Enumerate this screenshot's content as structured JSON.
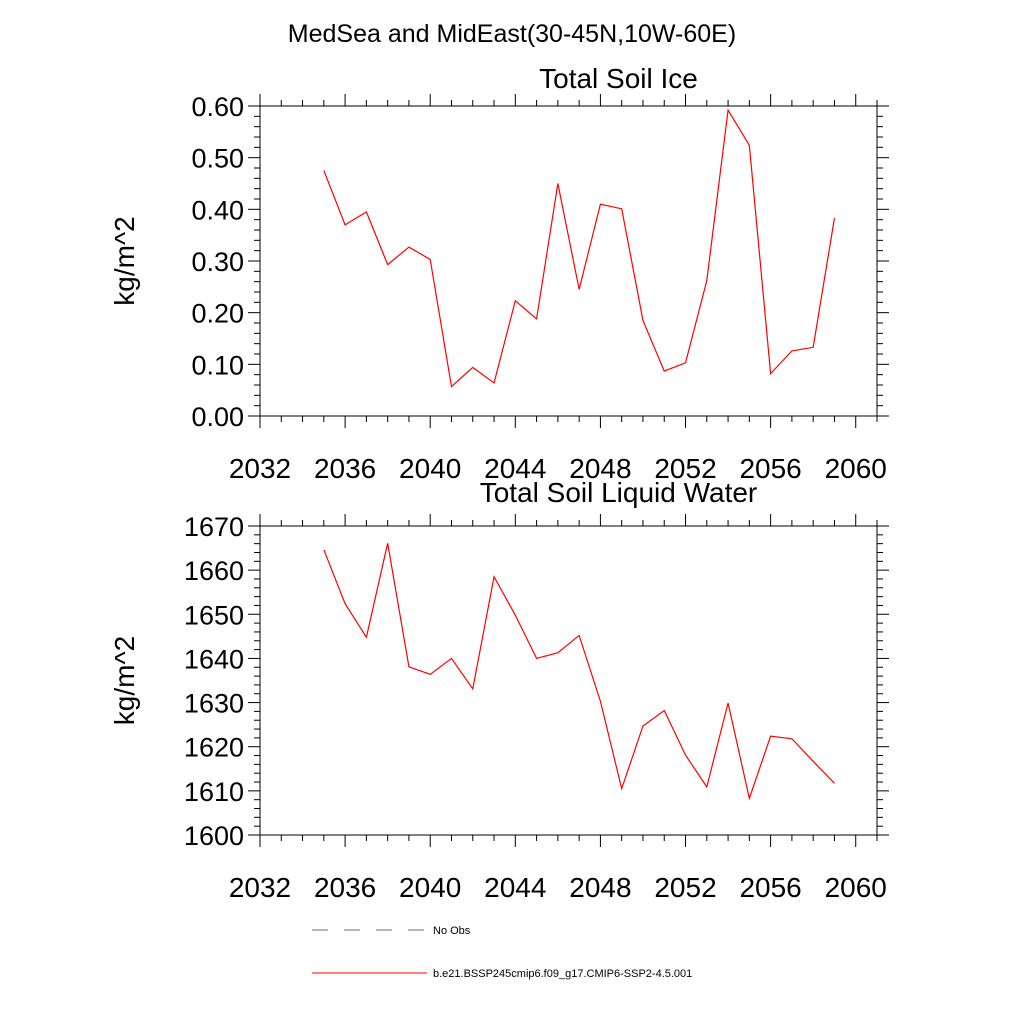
{
  "figure_title": "MedSea and MidEast(30-45N,10W-60E)",
  "colors": {
    "series": "#ff0000",
    "obs": "#5a6fa0",
    "axis": "#000000"
  },
  "chart_data": [
    {
      "type": "line",
      "title": "Total Soil Ice",
      "ylabel": "kg/m^2",
      "xlabel": "",
      "xlim": [
        2032,
        2061
      ],
      "ylim": [
        0,
        0.6
      ],
      "xticks": [
        2032,
        2036,
        2040,
        2044,
        2048,
        2052,
        2056,
        2060
      ],
      "xtick_labels": [
        "2032",
        "2036",
        "2040",
        "2044",
        "2048",
        "2052",
        "2056",
        "2060"
      ],
      "yticks": [
        0,
        0.1,
        0.2,
        0.3,
        0.4,
        0.5,
        0.6
      ],
      "ytick_labels": [
        "0.00",
        "0.10",
        "0.20",
        "0.30",
        "0.40",
        "0.50",
        "0.60"
      ],
      "grid": false,
      "x": [
        2035,
        2036,
        2037,
        2038,
        2039,
        2040,
        2041,
        2042,
        2043,
        2044,
        2045,
        2046,
        2047,
        2048,
        2049,
        2050,
        2051,
        2052,
        2053,
        2054,
        2055,
        2056,
        2057,
        2058,
        2059
      ],
      "series": [
        {
          "name": "b.e21.BSSP245cmip6.f09_g17.CMIP6-SSP2-4.5.001",
          "values": [
            0.475,
            0.37,
            0.395,
            0.293,
            0.327,
            0.303,
            0.057,
            0.094,
            0.064,
            0.223,
            0.188,
            0.45,
            0.245,
            0.41,
            0.401,
            0.185,
            0.087,
            0.103,
            0.262,
            0.592,
            0.524,
            0.082,
            0.126,
            0.133,
            0.383
          ]
        }
      ]
    },
    {
      "type": "line",
      "title": "Total Soil Liquid Water",
      "ylabel": "kg/m^2",
      "xlabel": "",
      "xlim": [
        2032,
        2061
      ],
      "ylim": [
        1600,
        1670
      ],
      "xticks": [
        2032,
        2036,
        2040,
        2044,
        2048,
        2052,
        2056,
        2060
      ],
      "xtick_labels": [
        "2032",
        "2036",
        "2040",
        "2044",
        "2048",
        "2052",
        "2056",
        "2060"
      ],
      "yticks": [
        1600,
        1610,
        1620,
        1630,
        1640,
        1650,
        1660,
        1670
      ],
      "ytick_labels": [
        "1600",
        "1610",
        "1620",
        "1630",
        "1640",
        "1650",
        "1660",
        "1670"
      ],
      "grid": false,
      "x": [
        2035,
        2036,
        2037,
        2038,
        2039,
        2040,
        2041,
        2042,
        2043,
        2044,
        2045,
        2046,
        2047,
        2048,
        2049,
        2050,
        2051,
        2052,
        2053,
        2054,
        2055,
        2056,
        2057,
        2058,
        2059
      ],
      "series": [
        {
          "name": "b.e21.BSSP245cmip6.f09_g17.CMIP6-SSP2-4.5.001",
          "values": [
            1664.6,
            1652.4,
            1644.8,
            1666.1,
            1638.1,
            1636.4,
            1640.0,
            1633.1,
            1658.5,
            1649.8,
            1640.0,
            1641.3,
            1645.2,
            1630.3,
            1610.5,
            1624.7,
            1628.2,
            1618.1,
            1610.9,
            1629.9,
            1608.3,
            1622.4,
            1621.8,
            1616.7,
            1611.7
          ]
        }
      ]
    }
  ],
  "legend": [
    {
      "label": "No Obs",
      "style": "dashed",
      "color": "#5a6fa0"
    },
    {
      "label": "b.e21.BSSP245cmip6.f09_g17.CMIP6-SSP2-4.5.001",
      "style": "solid",
      "color": "#ff0000"
    }
  ]
}
